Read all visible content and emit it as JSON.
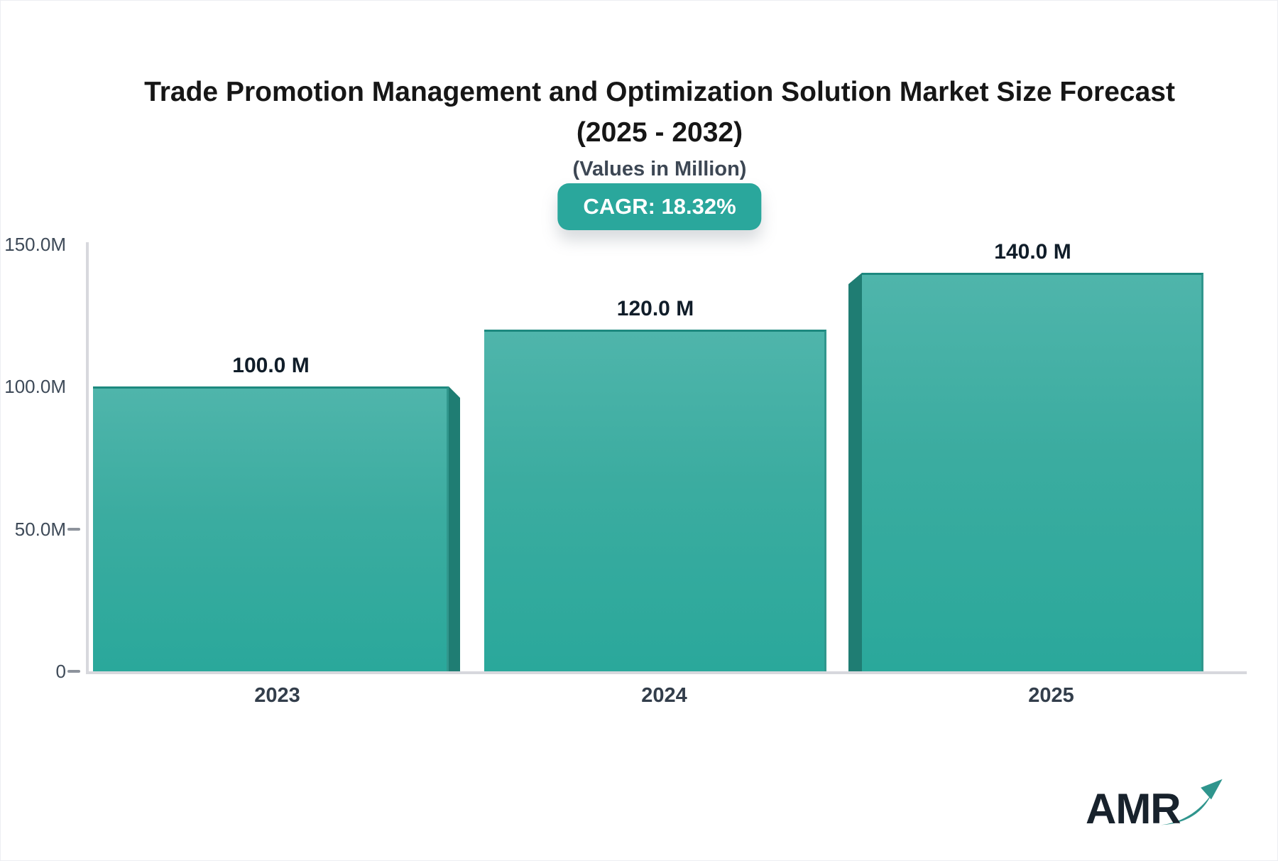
{
  "header": {
    "title_line1": "Trade Promotion Management and Optimization Solution Market Size Forecast",
    "title_line2": "(2025 - 2032)",
    "subtitle": "(Values in Million)",
    "cagr_label": "CAGR: 18.32%"
  },
  "chart_data": {
    "type": "bar",
    "title": "Trade Promotion Management and Optimization Solution Market Size Forecast (2025 - 2032)",
    "subtitle": "(Values in Million)",
    "cagr_percent": "18.32%",
    "categories": [
      "2023",
      "2024",
      "2025"
    ],
    "values": [
      100.0,
      120.0,
      140.0
    ],
    "value_labels": [
      "100.0 M",
      "120.0 M",
      "140.0 M"
    ],
    "ylim": [
      0,
      150
    ],
    "y_ticks": [
      {
        "value": 150,
        "label": "150.0M"
      },
      {
        "value": 100,
        "label": "100.0M"
      },
      {
        "value": 50,
        "label": "50.0M"
      },
      {
        "value": 0,
        "label": "0"
      }
    ],
    "tick_marks_visible": [
      false,
      false,
      true,
      true
    ],
    "grid": false,
    "legend": false,
    "bar_style": {
      "gradient_top": "#4fb5ab",
      "gradient_bottom": "#2aa89b",
      "side_3d": "#1f7d73",
      "edge": "#1d897f"
    }
  },
  "branding": {
    "logo_text": "AMR",
    "logo_text_color": "#18222c",
    "arrow_color": "#2f958d"
  },
  "colors": {
    "badge_teal": "#2aa79c",
    "axis_gray": "#d7d8dd",
    "label_dark": "#3e4a58"
  }
}
